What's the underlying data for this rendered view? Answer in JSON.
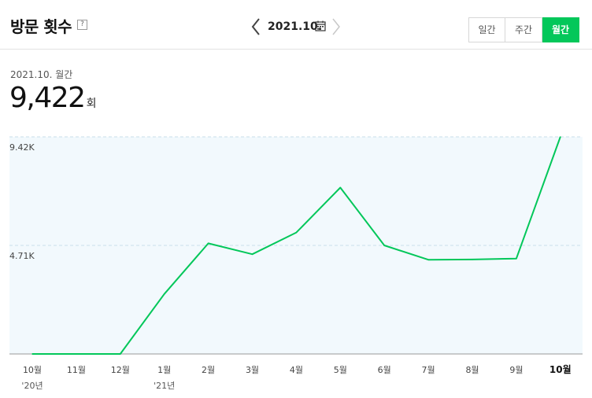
{
  "header": {
    "title": "방문 횟수",
    "help_label": "?",
    "nav_date": "2021.10.",
    "periods": [
      "일간",
      "주간",
      "월간"
    ],
    "active_period": "월간"
  },
  "summary": {
    "period_label": "2021.10. 월간",
    "value": "9,422",
    "unit": "회"
  },
  "colors": {
    "accent": "#03c75a",
    "plot_bg": "#f2f9fd",
    "gridline": "#c9dfea"
  },
  "chart_data": {
    "type": "line",
    "categories": [
      "10월",
      "11월",
      "12월",
      "1월",
      "2월",
      "3월",
      "4월",
      "5월",
      "6월",
      "7월",
      "8월",
      "9월",
      "10월"
    ],
    "year_labels": [
      {
        "index": 0,
        "label": "'20년"
      },
      {
        "index": 3,
        "label": "'21년"
      }
    ],
    "highlight_index": 12,
    "series": [
      {
        "values": [
          0,
          0,
          0,
          2600,
          4800,
          4330,
          5270,
          7220,
          4710,
          4090,
          4100,
          4140,
          9422
        ],
        "color": "#03c75a"
      }
    ],
    "yticks": [
      {
        "value": 4711,
        "label": "4.71K"
      },
      {
        "value": 9422,
        "label": "9.42K"
      }
    ],
    "ylim": [
      0,
      9422
    ],
    "grid": true
  }
}
